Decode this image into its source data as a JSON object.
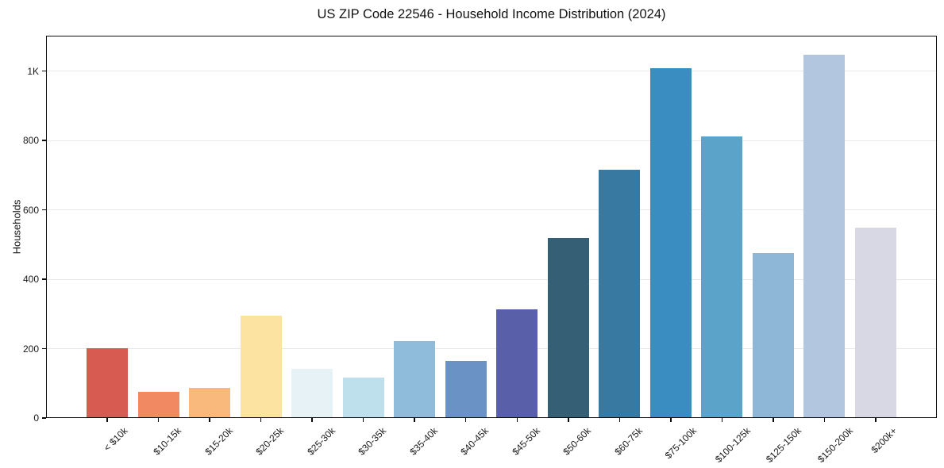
{
  "title": "US ZIP Code 22546 - Household Income Distribution (2024)",
  "chart_data": {
    "type": "bar",
    "title": "US ZIP Code 22546 - Household Income Distribution (2024)",
    "xlabel": "",
    "ylabel": "Households",
    "categories": [
      "< $10k",
      "$10-15k",
      "$15-20k",
      "$20-25k",
      "$25-30k",
      "$30-35k",
      "$35-40k",
      "$40-45k",
      "$45-50k",
      "$50-60k",
      "$60-75k",
      "$75-100k",
      "$100-125k",
      "$125-150k",
      "$150-200k",
      "$200k+"
    ],
    "values": [
      201,
      75,
      87,
      295,
      142,
      117,
      222,
      165,
      313,
      519,
      715,
      1008,
      812,
      475,
      1048,
      549
    ],
    "bar_colors": [
      "#d75b51",
      "#f18a63",
      "#fab97c",
      "#fde3a2",
      "#e7f2f7",
      "#bedfec",
      "#90bcdb",
      "#6b92c4",
      "#5a5fa9",
      "#355f75",
      "#3779a0",
      "#398dc1",
      "#5ba3c9",
      "#8eb6d7",
      "#b2c6df",
      "#d7d8e4"
    ],
    "ylim": [
      0,
      1102
    ],
    "yticks": [
      {
        "value": 0,
        "label": "0"
      },
      {
        "value": 200,
        "label": "200"
      },
      {
        "value": 400,
        "label": "400"
      },
      {
        "value": 600,
        "label": "600"
      },
      {
        "value": 800,
        "label": "800"
      },
      {
        "value": 1000,
        "label": "1K"
      }
    ],
    "grid": "horizontal-major",
    "legend": "none",
    "background_color": "#ffffff",
    "x_tick_rotation_deg": 45
  }
}
